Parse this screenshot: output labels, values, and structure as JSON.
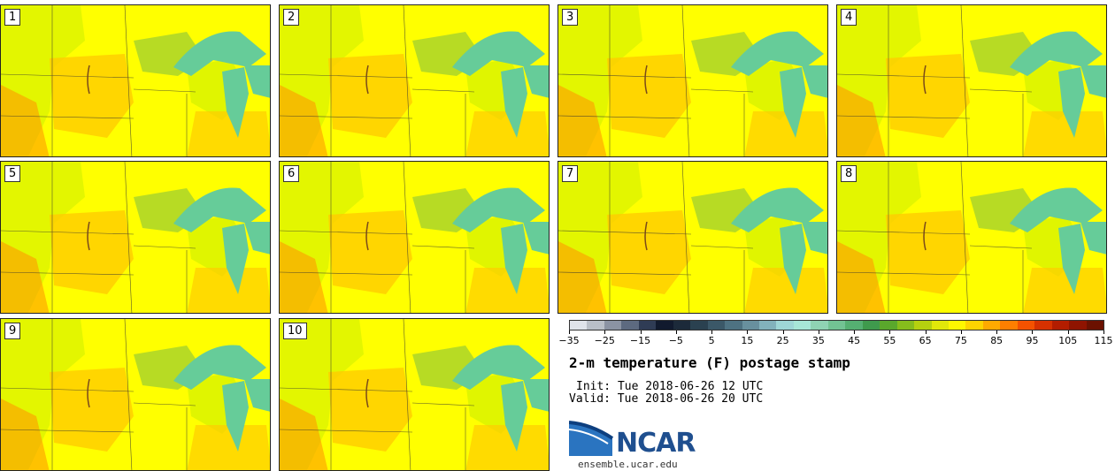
{
  "panels": [
    {
      "label": "1"
    },
    {
      "label": "2"
    },
    {
      "label": "3"
    },
    {
      "label": "4"
    },
    {
      "label": "5"
    },
    {
      "label": "6"
    },
    {
      "label": "7"
    },
    {
      "label": "8"
    },
    {
      "label": "9"
    },
    {
      "label": "10"
    }
  ],
  "colorbar": {
    "colors": [
      "#dfe3ea",
      "#b9bfc8",
      "#8b93a3",
      "#5d6a80",
      "#2f3c55",
      "#111a2e",
      "#1c2a3a",
      "#2a4150",
      "#3b5868",
      "#4e7282",
      "#68909e",
      "#82b2bc",
      "#9ed6d6",
      "#a7e6d7",
      "#8fd3b3",
      "#72c393",
      "#55b072",
      "#3f9a4d",
      "#5aa82c",
      "#86bd1c",
      "#b5d10f",
      "#e1e80a",
      "#fff700",
      "#ffd400",
      "#ffaa00",
      "#ff7f00",
      "#f45200",
      "#d63100",
      "#b31d00",
      "#8f1400",
      "#6b1100"
    ],
    "tick_labels": [
      "−35",
      "−25",
      "−15",
      "−5",
      "5",
      "15",
      "25",
      "35",
      "45",
      "55",
      "65",
      "75",
      "85",
      "95",
      "105",
      "115"
    ]
  },
  "title": "2-m temperature (F) postage stamp",
  "init": "Init: Tue 2018-06-26 12 UTC",
  "valid": "Valid: Tue 2018-06-26 20 UTC",
  "logo": {
    "text": "NCAR",
    "brand_color": "#1f4f8f"
  },
  "site": "ensemble.ucar.edu",
  "legend_colors": {
    "yellow": "#ffff00",
    "orange": "#ffcc00",
    "dark_orange": "#ff9900",
    "lime": "#ccee00",
    "green": "#99cc33",
    "lake": "#66cc99"
  }
}
